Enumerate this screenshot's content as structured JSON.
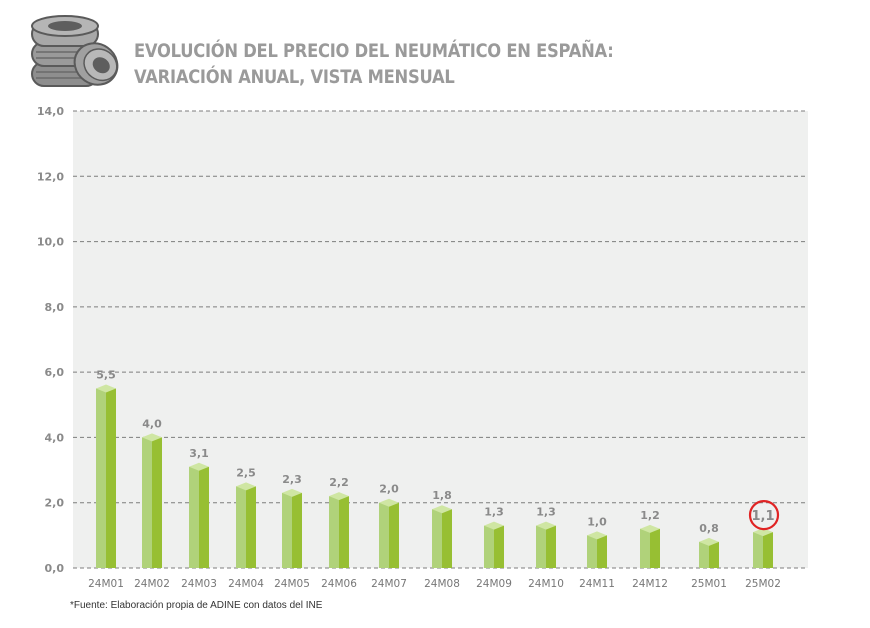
{
  "header": {
    "title_line1": "EVOLUCIÓN DEL PRECIO DEL NEUMÁTICO EN ESPAÑA:",
    "title_line2": "VARIACIÓN ANUAL, VISTA MENSUAL",
    "logo_icon": "tire-stack-icon"
  },
  "footer": {
    "source": "*Fuente: Elaboración propia de ADINE con datos del INE"
  },
  "colors": {
    "bar_left": "#b0d27a",
    "bar_right": "#97bf33",
    "bar_top": "#cfe6a3",
    "plot_bg": "#eff0ef",
    "highlight_circle": "#e02424",
    "title": "#9a9a9a"
  },
  "chart_data": {
    "type": "bar",
    "title": "EVOLUCIÓN DEL PRECIO DEL NEUMÁTICO EN ESPAÑA: VARIACIÓN ANUAL, VISTA MENSUAL",
    "xlabel": "",
    "ylabel": "",
    "categories": [
      "24M01",
      "24M02",
      "24M03",
      "24M04",
      "24M05",
      "24M06",
      "24M07",
      "24M08",
      "24M09",
      "24M10",
      "24M11",
      "24M12",
      "25M01",
      "25M02"
    ],
    "values": [
      5.5,
      4.0,
      3.1,
      2.5,
      2.3,
      2.2,
      2.0,
      1.8,
      1.3,
      1.3,
      1.0,
      1.2,
      0.8,
      1.1
    ],
    "value_labels": [
      "5,5",
      "4,0",
      "3,1",
      "2,5",
      "2,3",
      "2,2",
      "2,0",
      "1,8",
      "1,3",
      "1,3",
      "1,0",
      "1,2",
      "0,8",
      "1,1"
    ],
    "highlighted_category": "25M02",
    "ylim": [
      0,
      14
    ],
    "yticks": [
      0,
      2,
      4,
      6,
      8,
      10,
      12,
      14
    ],
    "ytick_labels": [
      "0,0",
      "2,0",
      "4,0",
      "6,0",
      "8,0",
      "10,0",
      "12,0",
      "14,0"
    ],
    "grid": "horizontal-dashed",
    "legend": "none"
  }
}
